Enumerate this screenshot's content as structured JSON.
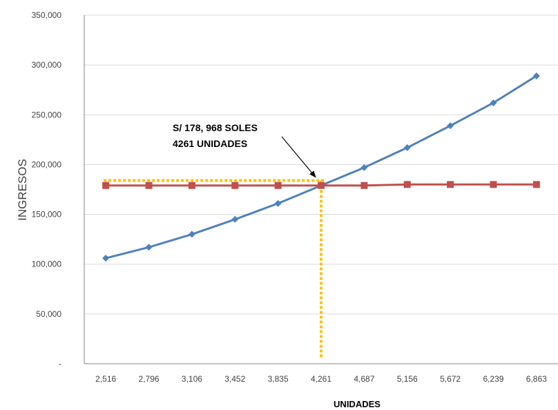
{
  "chart_data": {
    "type": "line",
    "xlabel": "UNIDADES",
    "ylabel": "INGRESOS",
    "categories": [
      "2,516",
      "2,796",
      "3,106",
      "3,452",
      "3,835",
      "4,261",
      "4,687",
      "5,156",
      "5,672",
      "6,239",
      "6,863"
    ],
    "y_ticks": [
      "-",
      "50,000",
      "100,000",
      "150,000",
      "200,000",
      "250,000",
      "300,000",
      "350,000"
    ],
    "ylim": [
      0,
      350000
    ],
    "series": [
      {
        "values": [
          106000,
          117000,
          130000,
          145000,
          161000,
          179000,
          197000,
          217000,
          239000,
          262000,
          289000
        ],
        "color": "#4F81BD",
        "marker": "diamond"
      },
      {
        "values": [
          179000,
          179000,
          179000,
          179000,
          179000,
          179000,
          179000,
          180000,
          180000,
          180000,
          180000
        ],
        "color": "#C0504D",
        "marker": "square"
      }
    ],
    "annotation": {
      "lines": [
        "S/ 178, 968 SOLES",
        "4261 UNIDADES"
      ],
      "point_category_index": 5,
      "point_value": 179000,
      "guide_value": 184000,
      "guide_color": "#FFC000"
    },
    "grid": "horizontal",
    "legend": "none"
  }
}
